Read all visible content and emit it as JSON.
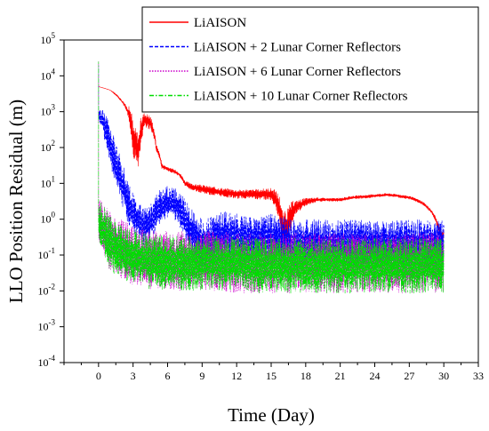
{
  "chart_data": {
    "type": "line",
    "title": "",
    "xlabel": "Time (Day)",
    "ylabel": "LLO Position Residual (m)",
    "xlim": [
      -3,
      33
    ],
    "ylim_log10": [
      -4,
      5
    ],
    "yscale": "log",
    "x_ticks": [
      0,
      3,
      6,
      9,
      12,
      15,
      18,
      21,
      24,
      27,
      30,
      33
    ],
    "y_ticks": [
      {
        "exp": -4,
        "label": "10",
        "sup": "-4"
      },
      {
        "exp": -3,
        "label": "10",
        "sup": "-3"
      },
      {
        "exp": -2,
        "label": "10",
        "sup": "-2"
      },
      {
        "exp": -1,
        "label": "10",
        "sup": "-1"
      },
      {
        "exp": 0,
        "label": "10",
        "sup": "0"
      },
      {
        "exp": 1,
        "label": "10",
        "sup": "1"
      },
      {
        "exp": 2,
        "label": "10",
        "sup": "2"
      },
      {
        "exp": 3,
        "label": "10",
        "sup": "3"
      },
      {
        "exp": 4,
        "label": "10",
        "sup": "4"
      },
      {
        "exp": 5,
        "label": "10",
        "sup": "5"
      }
    ],
    "legend_position": "top-right",
    "series": [
      {
        "name": "LiAISON",
        "color": "#ff0000",
        "dash": "solid",
        "x": [
          0,
          0.5,
          1.0,
          1.5,
          2.0,
          2.5,
          3.0,
          3.5,
          4.0,
          4.5,
          5.0,
          5.5,
          6.0,
          6.5,
          7.0,
          7.5,
          8.0,
          9.0,
          10.0,
          11.0,
          12.0,
          13.0,
          14.0,
          15.0,
          15.5,
          16.0,
          16.5,
          17.0,
          18.0,
          19.0,
          20.0,
          21.0,
          22.0,
          23.0,
          24.0,
          25.0,
          26.0,
          27.0,
          28.0,
          29.0,
          29.5,
          29.8,
          30.0
        ],
        "y": [
          5000,
          4500,
          4000,
          3000,
          2000,
          1100,
          150,
          80,
          600,
          500,
          100,
          30,
          25,
          22,
          18,
          10,
          8,
          7,
          6,
          5.5,
          5,
          5,
          5,
          5,
          3,
          0.5,
          0.7,
          2,
          3,
          3.5,
          3.5,
          3.5,
          4,
          4.2,
          4.5,
          4.8,
          4.5,
          4,
          3,
          1.5,
          0.6,
          0.3,
          0.4
        ],
        "band_amplitude": [
          1.0,
          1.0,
          1.0,
          1.05,
          1.1,
          1.2,
          3,
          3,
          1.6,
          1.6,
          1.3,
          1.2,
          1.15,
          1.15,
          1.15,
          1.2,
          1.25,
          1.3,
          1.35,
          1.35,
          1.35,
          1.35,
          1.4,
          1.5,
          2,
          3,
          3,
          1.6,
          1.3,
          1.15,
          1.12,
          1.12,
          1.12,
          1.12,
          1.12,
          1.12,
          1.12,
          1.12,
          1.12,
          1.12,
          1.3,
          1.5,
          1.4
        ]
      },
      {
        "name": "LiAISON + 2 Lunar Corner Reflectors",
        "color": "#0000ff",
        "dash": "dashed",
        "x": [
          0,
          0.3,
          0.6,
          1.0,
          1.5,
          2.0,
          2.5,
          3.0,
          3.5,
          4.0,
          4.5,
          5.0,
          5.5,
          6.0,
          6.5,
          7.0,
          7.5,
          8.0,
          8.5,
          9.0,
          10.0,
          11.0,
          12.0,
          13.0,
          14.0,
          15.0,
          16.0,
          17.0,
          18.0,
          20.0,
          22.0,
          24.0,
          26.0,
          28.0,
          30.0
        ],
        "y": [
          800,
          600,
          300,
          100,
          30,
          10,
          3,
          1.5,
          0.8,
          0.6,
          0.8,
          1.5,
          2.5,
          3,
          2.8,
          2,
          1,
          0.5,
          0.3,
          0.2,
          0.25,
          0.35,
          0.3,
          0.25,
          0.25,
          0.3,
          0.25,
          0.2,
          0.2,
          0.2,
          0.2,
          0.2,
          0.2,
          0.2,
          0.2
        ],
        "band_amplitude": [
          1.5,
          2,
          3,
          4,
          4,
          4,
          4,
          3.5,
          3.5,
          3.5,
          3.5,
          3.2,
          3,
          2.8,
          2.8,
          3,
          4,
          4,
          5,
          5,
          5,
          5,
          5,
          5,
          5,
          5,
          5,
          5,
          5,
          5,
          5,
          5,
          5,
          5,
          5
        ]
      },
      {
        "name": "LiAISON + 6 Lunar Corner Reflectors",
        "color": "#cc00cc",
        "dash": "dotted",
        "x": [
          0,
          0.3,
          0.6,
          1.0,
          2.0,
          3.0,
          4.0,
          6.0,
          8.0,
          10.0,
          12.0,
          14.0,
          16.0,
          18.0,
          20.0,
          22.0,
          24.0,
          26.0,
          28.0,
          30.0
        ],
        "y": [
          1.0,
          0.7,
          0.4,
          0.25,
          0.15,
          0.1,
          0.08,
          0.07,
          0.07,
          0.07,
          0.06,
          0.06,
          0.06,
          0.06,
          0.06,
          0.06,
          0.06,
          0.06,
          0.06,
          0.06
        ],
        "band_amplitude": [
          4,
          5,
          6,
          7,
          7,
          7,
          7,
          7,
          7,
          7,
          7,
          7,
          7,
          7,
          7,
          7,
          7,
          7,
          7,
          7
        ]
      },
      {
        "name": "LiAISON + 10 Lunar Corner Reflectors",
        "color": "#00dd00",
        "dash": "dashdot",
        "x": [
          0,
          0.3,
          0.6,
          1.0,
          2.0,
          3.0,
          4.0,
          6.0,
          8.0,
          10.0,
          12.0,
          14.0,
          16.0,
          18.0,
          20.0,
          22.0,
          24.0,
          26.0,
          28.0,
          30.0
        ],
        "y": [
          0.8,
          0.6,
          0.35,
          0.2,
          0.12,
          0.09,
          0.07,
          0.06,
          0.06,
          0.06,
          0.06,
          0.05,
          0.05,
          0.05,
          0.05,
          0.05,
          0.05,
          0.05,
          0.05,
          0.05
        ],
        "band_amplitude": [
          4,
          5,
          5.5,
          6,
          6,
          6,
          6,
          6,
          6,
          6,
          6,
          6,
          6,
          6,
          6,
          6,
          6,
          6,
          6,
          6
        ]
      }
    ]
  }
}
